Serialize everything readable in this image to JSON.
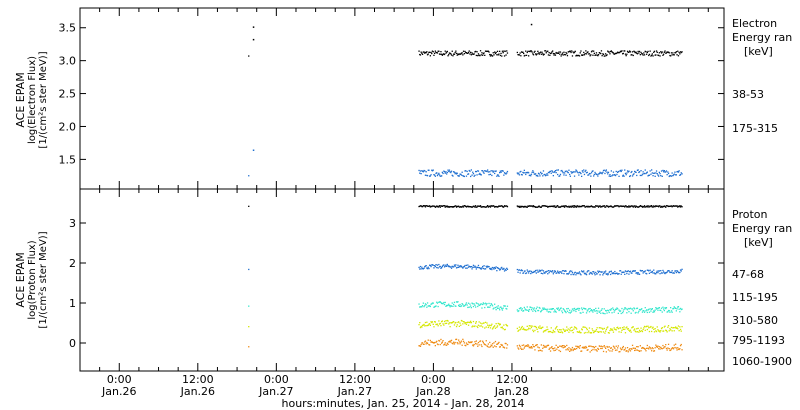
{
  "chart_data": [
    {
      "type": "scatter",
      "panel": "electron",
      "ylabel": [
        "ACE EPAM",
        "log(Electron Flux)",
        "[1/(cm²s ster MeV)]"
      ],
      "ylim": [
        1.05,
        3.8
      ],
      "yticks": [
        "1.5",
        "2.0",
        "2.5",
        "3.0",
        "3.5"
      ],
      "legend_title": [
        "Electron",
        "Energy ran",
        "[keV]"
      ],
      "series": [
        {
          "name": "38-53",
          "color": "#000000",
          "level": 3.12,
          "spread": 0.04,
          "outliers": [
            [
              0.85,
              3.52
            ],
            [
              0.85,
              3.33
            ],
            [
              2.62,
              3.56
            ]
          ]
        },
        {
          "name": "175-315",
          "color": "#1f6fd0",
          "level": 1.3,
          "spread": 0.05,
          "outliers": [
            [
              0.85,
              1.65
            ]
          ]
        }
      ]
    },
    {
      "type": "scatter",
      "panel": "proton",
      "ylabel": [
        "ACE EPAM",
        "log(Proton Flux)",
        "[1/(cm²s ster MeV)]"
      ],
      "ylim": [
        -0.7,
        3.85
      ],
      "yticks": [
        "0",
        "1",
        "2",
        "3"
      ],
      "legend_title": [
        "Proton",
        "Energy ran",
        "[keV]"
      ],
      "series": [
        {
          "name": "47-68",
          "color": "#000000",
          "level": 3.43,
          "spread": 0.02
        },
        {
          "name": "115-195",
          "color": "#1f6fd0",
          "level": 1.85,
          "spread": 0.05
        },
        {
          "name": "310-580",
          "color": "#33e6cc",
          "level": 0.9,
          "spread": 0.07
        },
        {
          "name": "795-1193",
          "color": "#d4e600",
          "level": 0.42,
          "spread": 0.08
        },
        {
          "name": "1060-1900",
          "color": "#ee8a12",
          "level": -0.05,
          "spread": 0.08
        }
      ]
    }
  ],
  "x_axis": {
    "range_days": [
      -0.25,
      3.85
    ],
    "gaps": [
      [
        0.82,
        1.9
      ],
      [
        2.47,
        2.53
      ]
    ],
    "data_span": [
      0.82,
      3.58
    ],
    "ticks": [
      {
        "t": 0.0,
        "time": "0:00",
        "date": "Jan.26"
      },
      {
        "t": 0.5,
        "time": "12:00",
        "date": "Jan.26"
      },
      {
        "t": 1.0,
        "time": "0:00",
        "date": "Jan.27"
      },
      {
        "t": 1.5,
        "time": "12:00",
        "date": "Jan.27"
      },
      {
        "t": 2.0,
        "time": "0:00",
        "date": "Jan.28"
      },
      {
        "t": 2.5,
        "time": "12:00",
        "date": "Jan.28"
      }
    ],
    "xlabel": "hours:minutes, Jan. 25, 2014 - Jan. 28, 2014"
  }
}
